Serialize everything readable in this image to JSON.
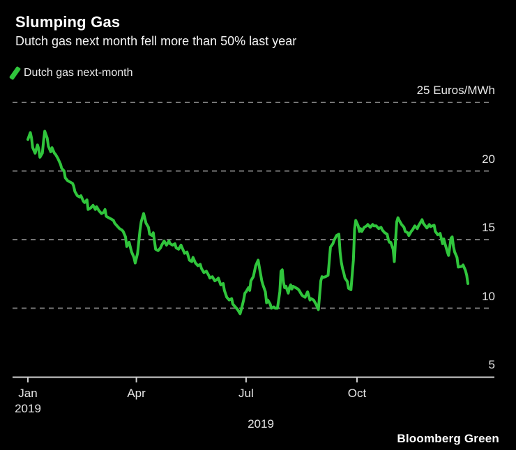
{
  "header": {
    "title": "Slumping Gas",
    "subtitle": "Dutch gas next month fell more than 50% last year"
  },
  "legend": {
    "label": "Dutch gas next-month",
    "swatch_color": "#30C53C"
  },
  "footer": {
    "brand": "Bloomberg Green"
  },
  "chart_data": {
    "type": "line",
    "title": "Slumping Gas",
    "subtitle": "Dutch gas next month fell more than 50% last year",
    "series_name": "Dutch gas next-month",
    "unit": "Euros/MWh",
    "line_color": "#30C53C",
    "grid": "horizontal dashed",
    "legend_position": "top-left",
    "ylim": [
      5,
      25
    ],
    "gridlines": [
      25,
      20,
      15,
      10
    ],
    "y_tick_labels": [
      {
        "value": 25,
        "label": "25 Euros/MWh"
      },
      {
        "value": 20,
        "label": "20"
      },
      {
        "value": 15,
        "label": "15"
      },
      {
        "value": 10,
        "label": "10"
      },
      {
        "value": 5,
        "label": "5"
      }
    ],
    "x_unit": "day_of_year_2019",
    "x_tick_labels": [
      {
        "day": 1,
        "label": "Jan",
        "sub": "2019"
      },
      {
        "day": 91,
        "label": "Apr"
      },
      {
        "day": 182,
        "label": "Jul"
      },
      {
        "day": 274,
        "label": "Oct"
      }
    ],
    "x_axis_year_label": "2019",
    "points": [
      [
        1,
        22.3
      ],
      [
        3,
        22.8
      ],
      [
        4,
        22.4
      ],
      [
        5,
        21.7
      ],
      [
        7,
        21.3
      ],
      [
        9,
        21.9
      ],
      [
        10,
        21.6
      ],
      [
        11,
        21.0
      ],
      [
        13,
        21.3
      ],
      [
        14,
        22.2
      ],
      [
        15,
        22.9
      ],
      [
        17,
        22.4
      ],
      [
        18,
        21.8
      ],
      [
        20,
        21.4
      ],
      [
        21,
        21.7
      ],
      [
        23,
        21.3
      ],
      [
        24,
        21.2
      ],
      [
        26,
        20.9
      ],
      [
        28,
        20.5
      ],
      [
        29,
        20.2
      ],
      [
        31,
        20.0
      ],
      [
        32,
        19.5
      ],
      [
        34,
        19.3
      ],
      [
        36,
        19.2
      ],
      [
        38,
        19.1
      ],
      [
        39,
        18.9
      ],
      [
        40,
        18.5
      ],
      [
        42,
        18.2
      ],
      [
        44,
        18.1
      ],
      [
        45,
        18.2
      ],
      [
        47,
        17.8
      ],
      [
        48,
        17.7
      ],
      [
        50,
        17.9
      ],
      [
        51,
        17.2
      ],
      [
        53,
        17.3
      ],
      [
        55,
        17.5
      ],
      [
        57,
        17.2
      ],
      [
        58,
        17.4
      ],
      [
        60,
        17.1
      ],
      [
        62,
        16.9
      ],
      [
        64,
        17.0
      ],
      [
        65,
        17.2
      ],
      [
        66,
        16.7
      ],
      [
        68,
        16.6
      ],
      [
        70,
        16.5
      ],
      [
        72,
        16.4
      ],
      [
        73,
        16.2
      ],
      [
        75,
        16.0
      ],
      [
        77,
        15.8
      ],
      [
        79,
        15.7
      ],
      [
        80,
        15.6
      ],
      [
        82,
        15.2
      ],
      [
        83,
        14.5
      ],
      [
        85,
        14.8
      ],
      [
        87,
        14.1
      ],
      [
        89,
        13.7
      ],
      [
        90,
        13.3
      ],
      [
        92,
        14.0
      ],
      [
        94,
        15.7
      ],
      [
        95,
        16.3
      ],
      [
        97,
        16.9
      ],
      [
        99,
        16.2
      ],
      [
        101,
        15.9
      ],
      [
        102,
        15.4
      ],
      [
        104,
        15.3
      ],
      [
        105,
        15.5
      ],
      [
        107,
        14.3
      ],
      [
        109,
        14.2
      ],
      [
        111,
        14.4
      ],
      [
        112,
        14.6
      ],
      [
        114,
        14.9
      ],
      [
        116,
        14.6
      ],
      [
        118,
        14.9
      ],
      [
        119,
        14.7
      ],
      [
        121,
        14.6
      ],
      [
        123,
        14.7
      ],
      [
        124,
        14.4
      ],
      [
        126,
        14.3
      ],
      [
        128,
        14.6
      ],
      [
        130,
        14.2
      ],
      [
        131,
        14.0
      ],
      [
        133,
        14.1
      ],
      [
        135,
        13.5
      ],
      [
        137,
        13.4
      ],
      [
        138,
        13.7
      ],
      [
        140,
        13.3
      ],
      [
        142,
        13.1
      ],
      [
        144,
        13.2
      ],
      [
        145,
        12.9
      ],
      [
        147,
        12.6
      ],
      [
        149,
        12.7
      ],
      [
        151,
        12.4
      ],
      [
        152,
        12.2
      ],
      [
        154,
        12.3
      ],
      [
        156,
        12.0
      ],
      [
        158,
        12.1
      ],
      [
        159,
        12.2
      ],
      [
        161,
        11.7
      ],
      [
        163,
        11.8
      ],
      [
        164,
        11.3
      ],
      [
        166,
        10.8
      ],
      [
        168,
        10.6
      ],
      [
        170,
        10.7
      ],
      [
        171,
        10.3
      ],
      [
        173,
        10.1
      ],
      [
        175,
        9.9
      ],
      [
        177,
        9.6
      ],
      [
        178,
        9.9
      ],
      [
        180,
        10.6
      ],
      [
        181,
        11.1
      ],
      [
        182,
        11.2
      ],
      [
        184,
        11.5
      ],
      [
        185,
        11.3
      ],
      [
        186,
        12.0
      ],
      [
        188,
        12.3
      ],
      [
        190,
        13.1
      ],
      [
        192,
        13.5
      ],
      [
        193,
        13.0
      ],
      [
        194,
        12.5
      ],
      [
        195,
        12.0
      ],
      [
        196,
        11.7
      ],
      [
        198,
        11.2
      ],
      [
        199,
        10.4
      ],
      [
        200,
        10.6
      ],
      [
        202,
        10.3
      ],
      [
        203,
        10.0
      ],
      [
        205,
        10.1
      ],
      [
        206,
        10.0
      ],
      [
        208,
        10.0
      ],
      [
        210,
        11.2
      ],
      [
        211,
        12.7
      ],
      [
        212,
        12.8
      ],
      [
        213,
        11.9
      ],
      [
        214,
        11.5
      ],
      [
        215,
        11.6
      ],
      [
        217,
        11.1
      ],
      [
        218,
        11.5
      ],
      [
        219,
        11.7
      ],
      [
        220,
        11.4
      ],
      [
        221,
        11.6
      ],
      [
        223,
        11.5
      ],
      [
        225,
        11.4
      ],
      [
        226,
        11.3
      ],
      [
        228,
        11.0
      ],
      [
        229,
        10.9
      ],
      [
        231,
        10.8
      ],
      [
        233,
        11.2
      ],
      [
        235,
        10.6
      ],
      [
        236,
        10.7
      ],
      [
        238,
        10.6
      ],
      [
        240,
        10.3
      ],
      [
        242,
        9.9
      ],
      [
        244,
        12.0
      ],
      [
        245,
        12.3
      ],
      [
        246,
        12.25
      ],
      [
        248,
        12.3
      ],
      [
        250,
        12.4
      ],
      [
        252,
        14.45
      ],
      [
        254,
        14.7
      ],
      [
        255,
        14.95
      ],
      [
        257,
        15.3
      ],
      [
        259,
        15.4
      ],
      [
        260,
        14.05
      ],
      [
        261,
        13.35
      ],
      [
        262,
        12.9
      ],
      [
        263,
        12.6
      ],
      [
        264,
        12.2
      ],
      [
        266,
        11.95
      ],
      [
        267,
        11.45
      ],
      [
        269,
        11.35
      ],
      [
        271,
        13.5
      ],
      [
        272,
        15.75
      ],
      [
        273,
        16.4
      ],
      [
        275,
        16.0
      ],
      [
        276,
        15.6
      ],
      [
        277,
        15.8
      ],
      [
        278,
        15.6
      ],
      [
        280,
        15.9
      ],
      [
        282,
        16.0
      ],
      [
        283,
        16.1
      ],
      [
        285,
        15.9
      ],
      [
        287,
        16.1
      ],
      [
        288,
        16.0
      ],
      [
        290,
        16.0
      ],
      [
        292,
        15.8
      ],
      [
        294,
        15.9
      ],
      [
        295,
        15.7
      ],
      [
        297,
        15.5
      ],
      [
        299,
        15.4
      ],
      [
        300,
        15.0
      ],
      [
        301,
        14.8
      ],
      [
        302,
        14.8
      ],
      [
        304,
        14.3
      ],
      [
        305,
        13.4
      ],
      [
        306,
        15.0
      ],
      [
        307,
        16.3
      ],
      [
        308,
        16.6
      ],
      [
        309,
        16.4
      ],
      [
        311,
        16.1
      ],
      [
        313,
        15.9
      ],
      [
        314,
        15.6
      ],
      [
        316,
        15.5
      ],
      [
        317,
        15.3
      ],
      [
        319,
        15.6
      ],
      [
        320,
        15.7
      ],
      [
        322,
        16.0
      ],
      [
        324,
        15.8
      ],
      [
        325,
        16.0
      ],
      [
        327,
        16.3
      ],
      [
        328,
        16.45
      ],
      [
        329,
        16.2
      ],
      [
        332,
        15.85
      ],
      [
        334,
        16.1
      ],
      [
        335,
        15.95
      ],
      [
        338,
        16.05
      ],
      [
        339,
        15.6
      ],
      [
        341,
        15.35
      ],
      [
        343,
        15.45
      ],
      [
        345,
        14.7
      ],
      [
        346,
        15.05
      ],
      [
        347,
        14.7
      ],
      [
        349,
        14.1
      ],
      [
        350,
        13.85
      ],
      [
        351,
        14.5
      ],
      [
        352,
        15.1
      ],
      [
        353,
        15.2
      ],
      [
        354,
        14.5
      ],
      [
        355,
        14.1
      ],
      [
        357,
        13.7
      ],
      [
        358,
        13.0
      ],
      [
        361,
        13.05
      ],
      [
        362,
        13.15
      ],
      [
        364,
        12.75
      ],
      [
        365,
        12.4
      ],
      [
        366,
        11.8
      ]
    ]
  }
}
